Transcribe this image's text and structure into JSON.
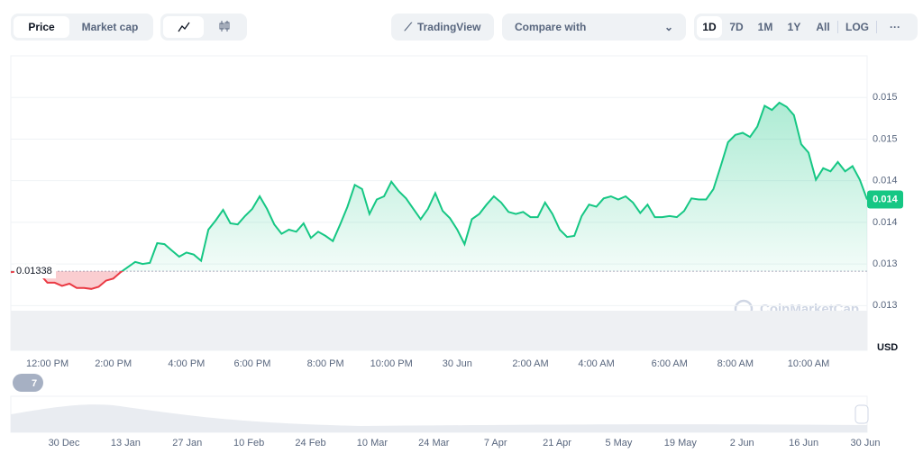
{
  "toolbar": {
    "tabs": [
      "Price",
      "Market cap"
    ],
    "tradingview": "TradingView",
    "compare": "Compare with",
    "ranges": [
      "1D",
      "7D",
      "1M",
      "1Y",
      "All"
    ],
    "log": "LOG",
    "more": "···"
  },
  "chart_data": {
    "type": "line",
    "currency": "USD",
    "watermark": "CoinMarketCap",
    "badge": "7",
    "ylim": [
      0.01262,
      0.01545
    ],
    "yticks": [
      {
        "value": 0.01505,
        "label": "0.015"
      },
      {
        "value": 0.01465,
        "label": "0.015"
      },
      {
        "value": 0.01425,
        "label": "0.014"
      },
      {
        "value": 0.01385,
        "label": "0.014"
      },
      {
        "value": 0.01345,
        "label": "0.013"
      },
      {
        "value": 0.01305,
        "label": "0.013"
      }
    ],
    "grid": true,
    "baseline": {
      "value": 0.01338,
      "label": "0.01338"
    },
    "last_price": {
      "value": 0.01407,
      "label": "0.014"
    },
    "categories": [
      null,
      null,
      null,
      null,
      null,
      "12:00 PM",
      null,
      null,
      null,
      null,
      null,
      null,
      null,
      null,
      "2:00 PM",
      null,
      null,
      null,
      null,
      null,
      null,
      null,
      null,
      null,
      "4:00 PM",
      null,
      null,
      null,
      null,
      null,
      null,
      null,
      null,
      "6:00 PM",
      null,
      null,
      null,
      null,
      null,
      null,
      null,
      null,
      null,
      "8:00 PM",
      null,
      null,
      null,
      null,
      null,
      null,
      null,
      null,
      "10:00 PM",
      null,
      null,
      null,
      null,
      null,
      null,
      null,
      null,
      "30 Jun",
      null,
      null,
      null,
      null,
      null,
      null,
      null,
      null,
      null,
      "2:00 AM",
      null,
      null,
      null,
      null,
      null,
      null,
      null,
      null,
      "4:00 AM",
      null,
      null,
      null,
      null,
      null,
      null,
      null,
      null,
      null,
      "6:00 AM",
      null,
      null,
      null,
      null,
      null,
      null,
      null,
      null,
      "8:00 AM",
      null,
      null,
      null,
      null,
      null,
      null,
      null,
      null,
      null,
      "10:00 AM",
      null,
      null,
      null,
      null,
      null,
      null,
      null,
      null
    ],
    "series": [
      {
        "name": "Price",
        "color": "#16c784",
        "below_color": "#ea3943",
        "values": [
          0.01337,
          0.01338,
          0.01344,
          0.01336,
          0.01335,
          0.01327,
          0.01327,
          0.01324,
          0.01326,
          0.01322,
          0.01322,
          0.01321,
          0.01323,
          0.01329,
          0.01331,
          0.01337,
          0.01342,
          0.01347,
          0.01345,
          0.01346,
          0.01365,
          0.01364,
          0.01358,
          0.01352,
          0.01356,
          0.01354,
          0.01348,
          0.01378,
          0.01387,
          0.01397,
          0.01384,
          0.01383,
          0.01391,
          0.01398,
          0.0141,
          0.01398,
          0.01383,
          0.01374,
          0.01378,
          0.01376,
          0.01384,
          0.0137,
          0.01376,
          0.01372,
          0.01367,
          0.01383,
          0.014,
          0.01421,
          0.01417,
          0.01393,
          0.01407,
          0.0141,
          0.01424,
          0.01415,
          0.01408,
          0.01398,
          0.01388,
          0.01398,
          0.01413,
          0.01396,
          0.01389,
          0.01378,
          0.01364,
          0.01388,
          0.01393,
          0.01402,
          0.0141,
          0.01404,
          0.01395,
          0.01393,
          0.01395,
          0.0139,
          0.0139,
          0.01404,
          0.01393,
          0.01378,
          0.01371,
          0.01372,
          0.01391,
          0.01402,
          0.014,
          0.01408,
          0.0141,
          0.01407,
          0.0141,
          0.01404,
          0.01394,
          0.01402,
          0.0139,
          0.0139,
          0.01391,
          0.0139,
          0.01396,
          0.01408,
          0.01407,
          0.01407,
          0.01417,
          0.01439,
          0.01462,
          0.01469,
          0.01471,
          0.01467,
          0.01477,
          0.01497,
          0.01493,
          0.015,
          0.01496,
          0.01488,
          0.0146,
          0.01452,
          0.01426,
          0.01437,
          0.01434,
          0.01443,
          0.01434,
          0.01439,
          0.01426,
          0.01407
        ]
      }
    ]
  },
  "navigator": {
    "labels": [
      "30 Dec",
      "13 Jan",
      "27 Jan",
      "10 Feb",
      "24 Feb",
      "10 Mar",
      "24 Mar",
      "7 Apr",
      "21 Apr",
      "5 May",
      "19 May",
      "2 Jun",
      "16 Jun",
      "30 Jun"
    ]
  }
}
